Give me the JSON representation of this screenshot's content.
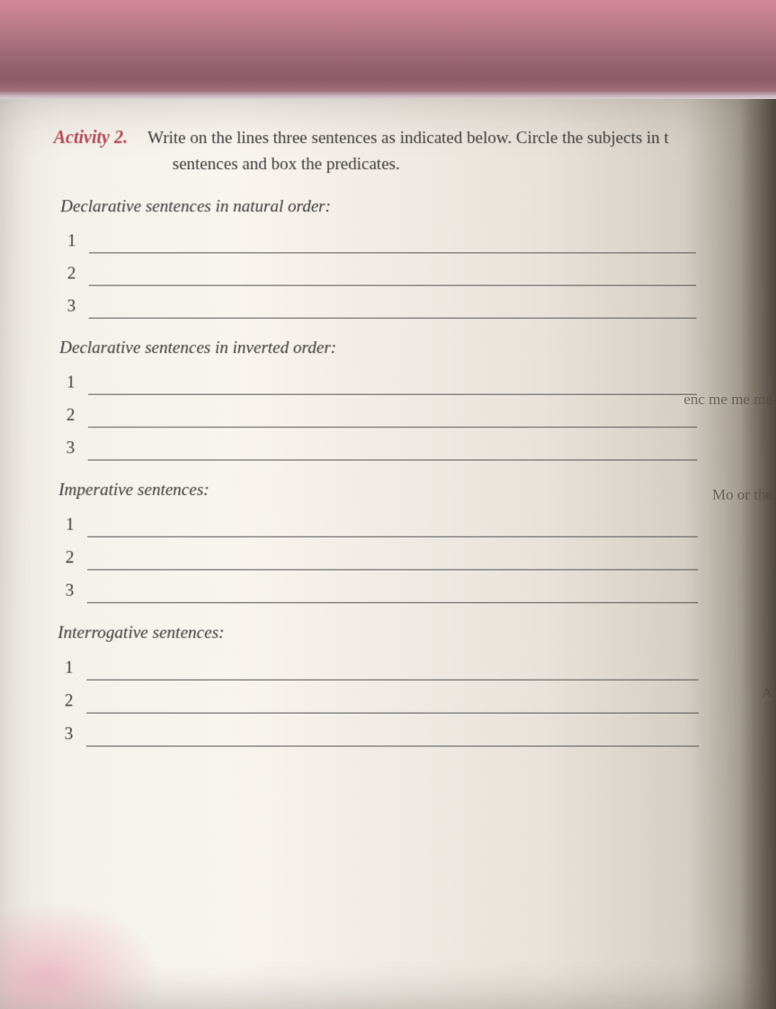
{
  "activity": {
    "label": "Activity 2.",
    "instruction_line1": "Write on the lines three sentences as indicated below. Circle the subjects in t",
    "instruction_line2": "sentences and box the predicates."
  },
  "sections": [
    {
      "title": "Declarative sentences in natural order:",
      "lines": [
        "1",
        "2",
        "3"
      ]
    },
    {
      "title": "Declarative sentences in inverted order:",
      "lines": [
        "1",
        "2",
        "3"
      ]
    },
    {
      "title": "Imperative sentences:",
      "lines": [
        "1",
        "2",
        "3"
      ]
    },
    {
      "title": "Interrogative sentences:",
      "lines": [
        "1",
        "2",
        "3"
      ]
    }
  ],
  "cutoff": {
    "c1": "enc\nme\nme\nme",
    "c2": "Mo\nor\nthe",
    "c3": "A"
  },
  "colors": {
    "accent": "#b04858",
    "text": "#3a3a3a",
    "line": "#555555",
    "paper_light": "#f8f4ee",
    "paper_shadow": "#aca498",
    "bg_pink": "#d4889a"
  }
}
